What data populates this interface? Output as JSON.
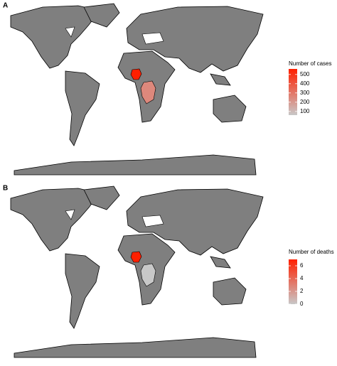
{
  "panels": [
    {
      "label": "A",
      "legend_title": "Number of cases",
      "lim": [
        60,
        560
      ],
      "ticks": [
        100,
        200,
        300,
        400,
        500
      ],
      "values": [
        560,
        250
      ],
      "low_color": "#c8c8c8",
      "high_color": "#ff2000"
    },
    {
      "label": "B",
      "legend_title": "Number of deaths",
      "lim": [
        0,
        7
      ],
      "ticks": [
        0,
        2,
        4,
        6
      ],
      "values": [
        7,
        0
      ],
      "low_color": "#c8c8c8",
      "high_color": "#ff2000"
    }
  ]
}
